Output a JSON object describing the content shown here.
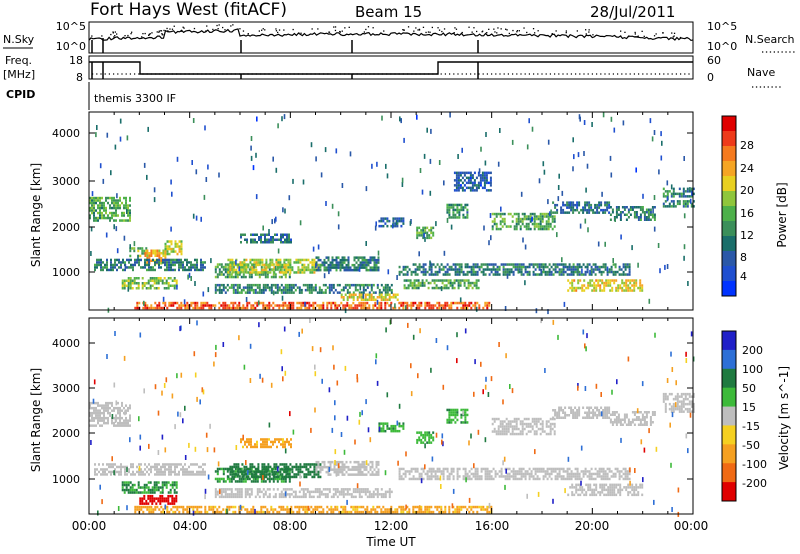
{
  "header": {
    "station": "Fort Hays West (fitACF)",
    "beam": "Beam 15",
    "date": "28/Jul/2011"
  },
  "strips": {
    "nsky_label": "N.Sky",
    "nsearch_label": "N.Search",
    "nsky_ticks": [
      "10^5",
      "10^0"
    ],
    "nsearch_ticks": [
      "10^5",
      "10^0"
    ],
    "freq_label": "Freq.",
    "freq_unit": "[MHz]",
    "freq_ticks": [
      "18",
      "8"
    ],
    "nave_label": "Nave",
    "nave_ticks": [
      "60",
      "0"
    ],
    "cpid_label": "CPID",
    "cpid_text": "themis 3300 IF"
  },
  "chart_data": [
    {
      "type": "heatmap",
      "title": "",
      "xlabel": "",
      "ylabel": "Slant Range [km]",
      "x_range_hours": [
        0,
        24
      ],
      "ylim": [
        180,
        4500
      ],
      "y_ticks": [
        "4000",
        "3000",
        "2000",
        "1000"
      ],
      "colorbar": {
        "label": "Power [dB]",
        "ticks": [
          "28",
          "24",
          "20",
          "16",
          "12",
          "8",
          "4"
        ],
        "colors": [
          "#0033ff",
          "#1f4fcf",
          "#2a58a8",
          "#1a6e6a",
          "#3b8f5a",
          "#4db04a",
          "#8fc63c",
          "#e8d020",
          "#f5a524",
          "#f57a1e",
          "#ee3a1a",
          "#e00000"
        ]
      },
      "bands": [
        {
          "t": [
            0.0,
            1.6
          ],
          "r": [
            2150,
            2650
          ],
          "p": 14
        },
        {
          "t": [
            1.6,
            2.3
          ],
          "r": [
            1350,
            1550
          ],
          "p": 16
        },
        {
          "t": [
            2.2,
            3.0
          ],
          "r": [
            1200,
            1500
          ],
          "p": 22
        },
        {
          "t": [
            3.0,
            3.7
          ],
          "r": [
            1400,
            1700
          ],
          "p": 18
        },
        {
          "t": [
            0.2,
            4.6
          ],
          "r": [
            1050,
            1300
          ],
          "p": 10
        },
        {
          "t": [
            1.3,
            3.5
          ],
          "r": [
            650,
            900
          ],
          "p": 16
        },
        {
          "t": [
            5.0,
            8.0
          ],
          "r": [
            900,
            1200
          ],
          "p": 14
        },
        {
          "t": [
            5.5,
            9.2
          ],
          "r": [
            1000,
            1300
          ],
          "p": 18
        },
        {
          "t": [
            6.0,
            8.0
          ],
          "r": [
            1650,
            1850
          ],
          "p": 9
        },
        {
          "t": [
            9.0,
            11.5
          ],
          "r": [
            1050,
            1350
          ],
          "p": 10
        },
        {
          "t": [
            5.0,
            12.0
          ],
          "r": [
            550,
            750
          ],
          "p": 11
        },
        {
          "t": [
            1.8,
            16.0
          ],
          "r": [
            240,
            360
          ],
          "p": 26
        },
        {
          "t": [
            10.0,
            12.3
          ],
          "r": [
            380,
            540
          ],
          "p": 20
        },
        {
          "t": [
            12.3,
            21.5
          ],
          "r": [
            950,
            1200
          ],
          "p": 10
        },
        {
          "t": [
            12.5,
            15.5
          ],
          "r": [
            650,
            850
          ],
          "p": 14
        },
        {
          "t": [
            19.0,
            22.0
          ],
          "r": [
            620,
            850
          ],
          "p": 20
        },
        {
          "t": [
            14.2,
            15.0
          ],
          "r": [
            2200,
            2500
          ],
          "p": 12
        },
        {
          "t": [
            16.0,
            18.5
          ],
          "r": [
            1950,
            2300
          ],
          "p": 14
        },
        {
          "t": [
            18.4,
            20.7
          ],
          "r": [
            2300,
            2550
          ],
          "p": 9
        },
        {
          "t": [
            20.7,
            22.5
          ],
          "r": [
            2150,
            2450
          ],
          "p": 11
        },
        {
          "t": [
            22.8,
            24.0
          ],
          "r": [
            2450,
            2850
          ],
          "p": 11
        },
        {
          "t": [
            14.5,
            16.0
          ],
          "r": [
            2800,
            3200
          ],
          "p": 7
        },
        {
          "t": [
            11.5,
            12.5
          ],
          "r": [
            2000,
            2200
          ],
          "p": 8
        },
        {
          "t": [
            13.0,
            13.7
          ],
          "r": [
            1750,
            2000
          ],
          "p": 14
        }
      ]
    },
    {
      "type": "heatmap",
      "title": "",
      "xlabel": "Time UT",
      "ylabel": "Slant Range [km]",
      "x_range_hours": [
        0,
        24
      ],
      "ylim": [
        180,
        4500
      ],
      "x_ticks": [
        "00:00",
        "04:00",
        "08:00",
        "12:00",
        "16:00",
        "20:00",
        "00:00"
      ],
      "y_ticks": [
        "4000",
        "3000",
        "2000",
        "1000"
      ],
      "colorbar": {
        "label": "Velocity [m s^-1]",
        "ticks": [
          "200",
          "100",
          "50",
          "15",
          "-15",
          "-50",
          "-100",
          "-200"
        ],
        "colors": [
          "#2020c8",
          "#2d6fd6",
          "#1f7a40",
          "#3dba3a",
          "#bebebe",
          "#f5d020",
          "#f5a020",
          "#f06a14",
          "#e00000"
        ]
      },
      "bands": [
        {
          "t": [
            0.0,
            1.6
          ],
          "r": [
            2150,
            2650
          ],
          "v": 0
        },
        {
          "t": [
            0.2,
            4.6
          ],
          "r": [
            1050,
            1300
          ],
          "v": 0
        },
        {
          "t": [
            1.3,
            3.5
          ],
          "r": [
            650,
            900
          ],
          "v": 40
        },
        {
          "t": [
            5.0,
            8.0
          ],
          "r": [
            900,
            1200
          ],
          "v": 40
        },
        {
          "t": [
            5.5,
            9.2
          ],
          "r": [
            1000,
            1300
          ],
          "v": 60
        },
        {
          "t": [
            6.0,
            8.0
          ],
          "r": [
            1650,
            1850
          ],
          "v": -60
        },
        {
          "t": [
            9.0,
            11.5
          ],
          "r": [
            1050,
            1350
          ],
          "v": 0
        },
        {
          "t": [
            5.0,
            12.0
          ],
          "r": [
            550,
            750
          ],
          "v": 0
        },
        {
          "t": [
            1.8,
            16.0
          ],
          "r": [
            240,
            360
          ],
          "v": -60
        },
        {
          "t": [
            2.0,
            3.5
          ],
          "r": [
            380,
            600
          ],
          "v": -250
        },
        {
          "t": [
            12.3,
            21.5
          ],
          "r": [
            950,
            1200
          ],
          "v": 0
        },
        {
          "t": [
            19.0,
            22.0
          ],
          "r": [
            620,
            850
          ],
          "v": 0
        },
        {
          "t": [
            14.2,
            15.0
          ],
          "r": [
            2200,
            2500
          ],
          "v": 30
        },
        {
          "t": [
            16.0,
            18.5
          ],
          "r": [
            1950,
            2300
          ],
          "v": 0
        },
        {
          "t": [
            18.4,
            20.7
          ],
          "r": [
            2300,
            2550
          ],
          "v": 0
        },
        {
          "t": [
            20.7,
            22.5
          ],
          "r": [
            2150,
            2450
          ],
          "v": 0
        },
        {
          "t": [
            22.8,
            24.0
          ],
          "r": [
            2450,
            2850
          ],
          "v": 0
        },
        {
          "t": [
            11.5,
            12.5
          ],
          "r": [
            2000,
            2200
          ],
          "v": 30
        },
        {
          "t": [
            13.0,
            13.7
          ],
          "r": [
            1750,
            2000
          ],
          "v": 30
        }
      ]
    }
  ]
}
